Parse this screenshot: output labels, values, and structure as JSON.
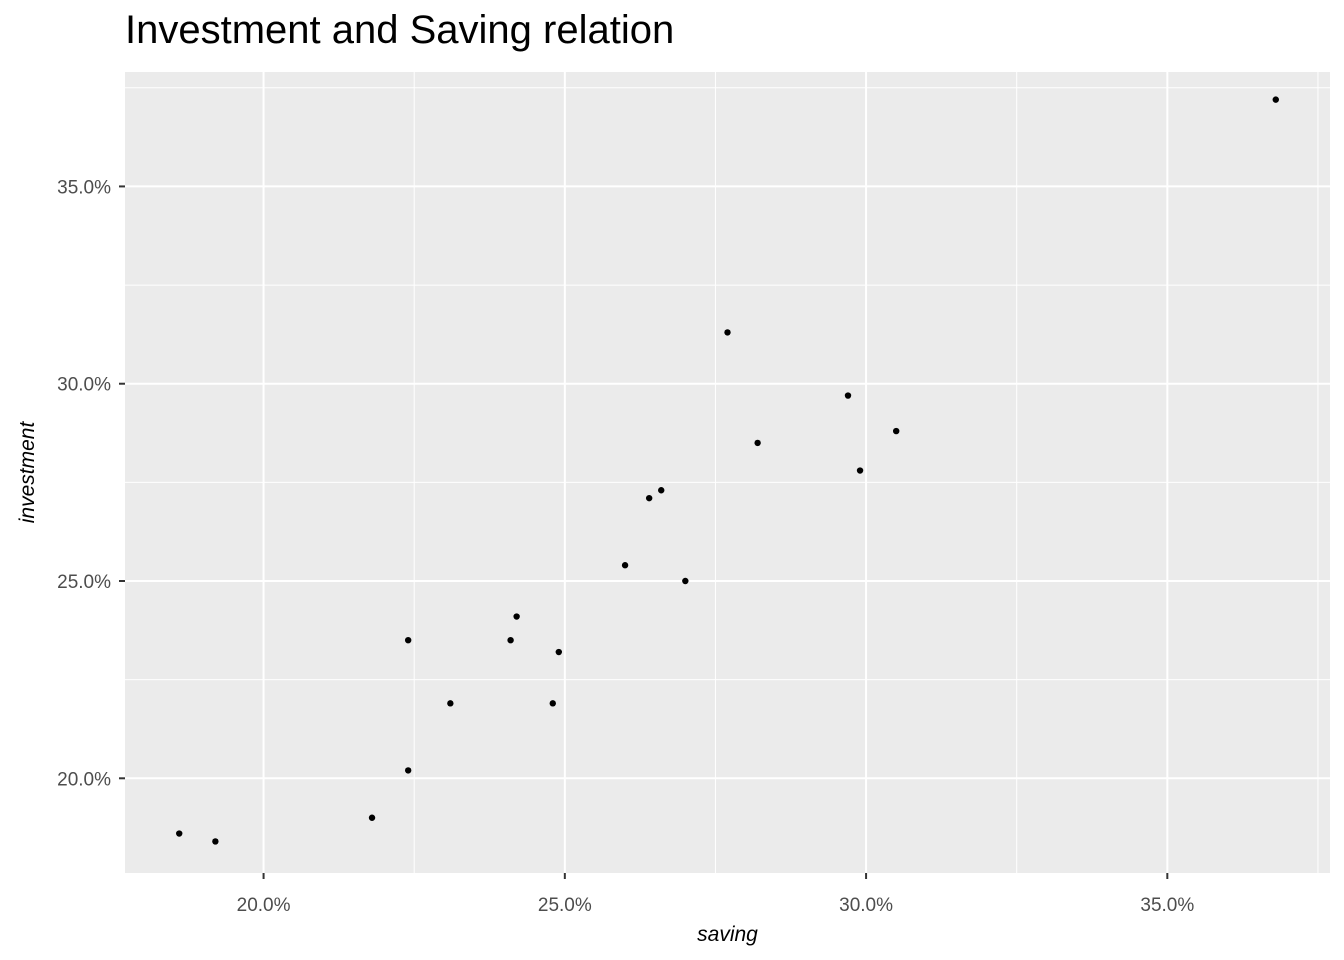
{
  "chart_data": {
    "type": "scatter",
    "title": "Investment and Saving relation",
    "xlabel": "saving",
    "ylabel": "investment",
    "xlim": [
      17.7,
      37.7
    ],
    "ylim": [
      17.6,
      37.9
    ],
    "x_ticks": [
      20,
      25,
      30,
      35
    ],
    "x_tick_labels": [
      "20.0%",
      "25.0%",
      "30.0%",
      "35.0%"
    ],
    "y_ticks": [
      20,
      25,
      30,
      35
    ],
    "y_tick_labels": [
      "20.0%",
      "25.0%",
      "30.0%",
      "35.0%"
    ],
    "grid": true,
    "panel_background": "#ebebeb",
    "grid_color": "#ffffff",
    "point_color": "#000000",
    "points": [
      {
        "x": 18.6,
        "y": 18.6
      },
      {
        "x": 19.2,
        "y": 18.4
      },
      {
        "x": 21.8,
        "y": 19.0
      },
      {
        "x": 22.4,
        "y": 20.2
      },
      {
        "x": 22.4,
        "y": 23.5
      },
      {
        "x": 23.1,
        "y": 21.9
      },
      {
        "x": 24.1,
        "y": 23.5
      },
      {
        "x": 24.2,
        "y": 24.1
      },
      {
        "x": 24.8,
        "y": 21.9
      },
      {
        "x": 24.9,
        "y": 23.2
      },
      {
        "x": 26.0,
        "y": 25.4
      },
      {
        "x": 26.4,
        "y": 27.1
      },
      {
        "x": 26.6,
        "y": 27.3
      },
      {
        "x": 27.0,
        "y": 25.0
      },
      {
        "x": 27.7,
        "y": 31.3
      },
      {
        "x": 28.2,
        "y": 28.5
      },
      {
        "x": 29.7,
        "y": 29.7
      },
      {
        "x": 29.9,
        "y": 27.8
      },
      {
        "x": 30.5,
        "y": 28.8
      },
      {
        "x": 36.8,
        "y": 37.2
      }
    ]
  }
}
